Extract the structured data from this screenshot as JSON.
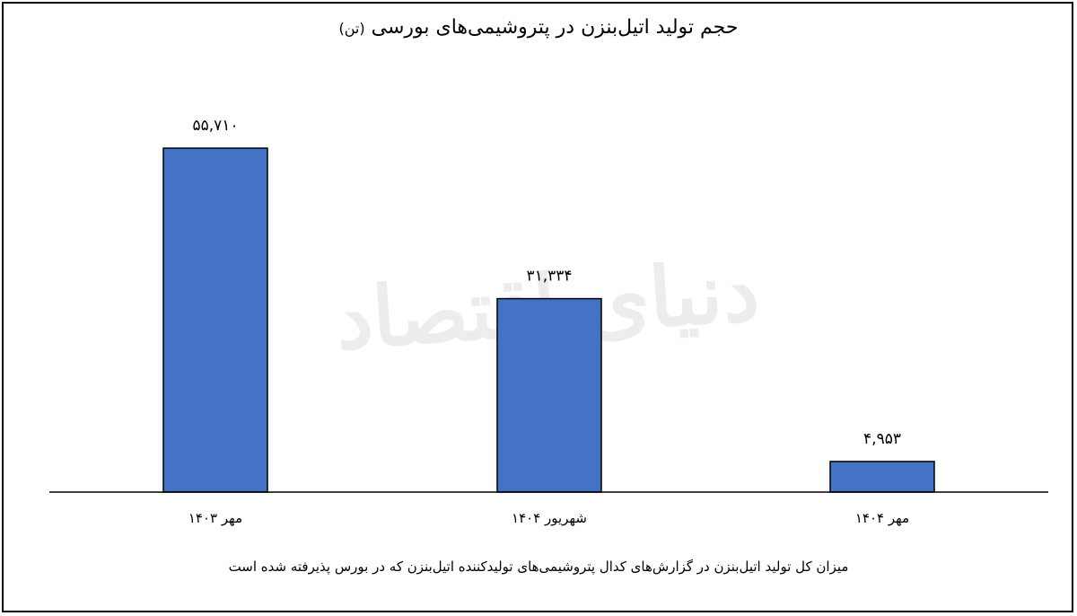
{
  "header": {
    "title": "حجم تولید اتیل‌بنزن در پتروشیمی‌های بورسی",
    "unit": "(تن)"
  },
  "watermark": "دنیای اقتصاد",
  "caption": "میزان کل تولید اتیل‌بنزن در گزارش‌های کدال پتروشیمی‌های تولیدکننده اتیل‌بنزن که در بورس پذیرفته شده است",
  "colors": {
    "bar": "#4472C4",
    "bar_stroke": "#000000",
    "axis": "#000000"
  },
  "chart_data": {
    "type": "bar",
    "title": "حجم تولید اتیل‌بنزن در پتروشیمی‌های بورسی",
    "xlabel": "",
    "ylabel": "",
    "categories": [
      "مهر ۱۴۰۳",
      "شهریور ۱۴۰۴",
      "مهر ۱۴۰۴"
    ],
    "values": [
      55710,
      31334,
      4953
    ],
    "value_labels": [
      "۵۵,۷۱۰",
      "۳۱,۳۳۴",
      "۴,۹۵۳"
    ],
    "ylim": [
      0,
      60000
    ],
    "grid": false,
    "legend": "none"
  }
}
